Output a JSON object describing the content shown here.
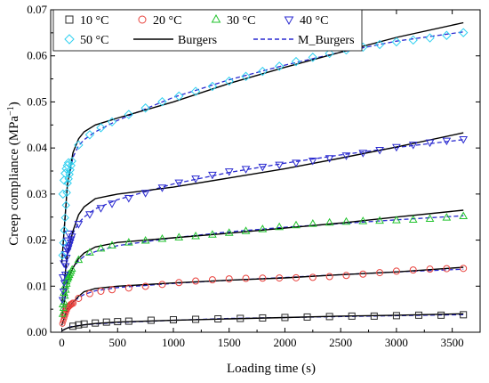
{
  "chart_data": {
    "type": "scatter",
    "xlabel": "Loading time (s)",
    "ylabel_main": "Creep compliance (MPa",
    "ylabel_sup": "−1",
    "ylabel_end": ")",
    "xlim": [
      -100,
      3750
    ],
    "ylim": [
      0,
      0.07
    ],
    "xticks": [
      0,
      500,
      1000,
      1500,
      2000,
      2500,
      3000,
      3500
    ],
    "yticks": [
      0.0,
      0.01,
      0.02,
      0.03,
      0.04,
      0.05,
      0.06,
      0.07
    ],
    "ytick_labels": [
      "0.00",
      "0.01",
      "0.02",
      "0.03",
      "0.04",
      "0.05",
      "0.06",
      "0.07"
    ],
    "legend_position": "top",
    "series": [
      {
        "name": "10 °C",
        "marker": "square",
        "color": "#2b2b2b",
        "max_time": 3600,
        "data": [
          [
            100,
            0.0013
          ],
          [
            150,
            0.0016
          ],
          [
            200,
            0.0018
          ],
          [
            300,
            0.002
          ],
          [
            400,
            0.0022
          ],
          [
            500,
            0.0023
          ],
          [
            600,
            0.0024
          ],
          [
            800,
            0.0026
          ],
          [
            1000,
            0.0027
          ],
          [
            1200,
            0.0028
          ],
          [
            1400,
            0.0029
          ],
          [
            1600,
            0.003
          ],
          [
            1800,
            0.0031
          ],
          [
            2000,
            0.0032
          ],
          [
            2200,
            0.0033
          ],
          [
            2400,
            0.0034
          ],
          [
            2600,
            0.0035
          ],
          [
            2800,
            0.0035
          ],
          [
            3000,
            0.0036
          ],
          [
            3200,
            0.0037
          ],
          [
            3400,
            0.0037
          ],
          [
            3600,
            0.0038
          ]
        ]
      },
      {
        "name": "20 °C",
        "marker": "circle",
        "color": "#e8413c",
        "max_time": 100,
        "data": [
          [
            20,
            0.004
          ],
          [
            40,
            0.005
          ],
          [
            60,
            0.0056
          ],
          [
            80,
            0.006
          ],
          [
            100,
            0.0063
          ]
        ]
      },
      {
        "name": "30 °C",
        "marker": "triangle-up",
        "color": "#22c32e",
        "max_time": 60,
        "data": [
          [
            10,
            0.006
          ],
          [
            20,
            0.0085
          ],
          [
            30,
            0.01
          ],
          [
            40,
            0.011
          ],
          [
            50,
            0.0118
          ],
          [
            60,
            0.0125
          ]
        ]
      },
      {
        "name": "40 °C",
        "marker": "triangle-down",
        "color": "#2a2ad0",
        "max_time": 60,
        "data": [
          [
            10,
            0.012
          ],
          [
            20,
            0.015
          ],
          [
            30,
            0.017
          ],
          [
            40,
            0.0185
          ],
          [
            50,
            0.02
          ],
          [
            60,
            0.0215
          ]
        ]
      },
      {
        "name": "50 °C",
        "marker": "diamond",
        "color": "#2fd0f0",
        "max_time": 60,
        "data": [
          [
            10,
            0.03
          ],
          [
            20,
            0.033
          ],
          [
            30,
            0.0345
          ],
          [
            40,
            0.0355
          ],
          [
            50,
            0.0362
          ],
          [
            60,
            0.0368
          ]
        ]
      }
    ],
    "fit_series": [
      {
        "name": "Burgers",
        "style": "solid",
        "color": "#000000"
      },
      {
        "name": "M_Burgers",
        "style": "dashed",
        "color": "#2a2ad0"
      }
    ],
    "curves": [
      {
        "color": "#2b2b2b",
        "burgers": [
          [
            0,
            0.0003
          ],
          [
            50,
            0.0009
          ],
          [
            100,
            0.0012
          ],
          [
            200,
            0.0016
          ],
          [
            300,
            0.0019
          ],
          [
            500,
            0.0022
          ],
          [
            1000,
            0.0026
          ],
          [
            1500,
            0.0029
          ],
          [
            2000,
            0.0032
          ],
          [
            2500,
            0.0035
          ],
          [
            3000,
            0.0037
          ],
          [
            3600,
            0.004
          ]
        ],
        "m_burgers": [
          [
            0,
            0.0003
          ],
          [
            50,
            0.001
          ],
          [
            100,
            0.0013
          ],
          [
            200,
            0.0016
          ],
          [
            300,
            0.0018
          ],
          [
            500,
            0.0021
          ],
          [
            1000,
            0.0026
          ],
          [
            1500,
            0.003
          ],
          [
            2000,
            0.0032
          ],
          [
            2500,
            0.0034
          ],
          [
            3000,
            0.0036
          ],
          [
            3600,
            0.0038
          ]
        ]
      },
      {
        "color": "#e8413c",
        "burgers": [
          [
            0,
            0.0015
          ],
          [
            50,
            0.005
          ],
          [
            100,
            0.0065
          ],
          [
            150,
            0.0078
          ],
          [
            200,
            0.0088
          ],
          [
            300,
            0.0095
          ],
          [
            500,
            0.01
          ],
          [
            1000,
            0.0107
          ],
          [
            1500,
            0.0113
          ],
          [
            2000,
            0.0118
          ],
          [
            2500,
            0.0125
          ],
          [
            3000,
            0.0131
          ],
          [
            3600,
            0.0141
          ]
        ],
        "m_burgers": [
          [
            0,
            0.0015
          ],
          [
            50,
            0.0052
          ],
          [
            100,
            0.0065
          ],
          [
            150,
            0.0075
          ],
          [
            200,
            0.0082
          ],
          [
            300,
            0.009
          ],
          [
            500,
            0.0097
          ],
          [
            1000,
            0.0106
          ],
          [
            1500,
            0.0113
          ],
          [
            2000,
            0.0119
          ],
          [
            2500,
            0.0125
          ],
          [
            3000,
            0.0131
          ],
          [
            3600,
            0.0137
          ]
        ]
      },
      {
        "color": "#22c32e",
        "burgers": [
          [
            0,
            0.003
          ],
          [
            50,
            0.011
          ],
          [
            100,
            0.014
          ],
          [
            150,
            0.016
          ],
          [
            200,
            0.0172
          ],
          [
            300,
            0.0185
          ],
          [
            500,
            0.0195
          ],
          [
            1000,
            0.0205
          ],
          [
            1500,
            0.0215
          ],
          [
            2000,
            0.0226
          ],
          [
            2500,
            0.0237
          ],
          [
            3000,
            0.025
          ],
          [
            3600,
            0.0265
          ]
        ],
        "m_burgers": [
          [
            0,
            0.003
          ],
          [
            50,
            0.0112
          ],
          [
            100,
            0.014
          ],
          [
            150,
            0.0155
          ],
          [
            200,
            0.0165
          ],
          [
            300,
            0.0175
          ],
          [
            500,
            0.0188
          ],
          [
            1000,
            0.0205
          ],
          [
            1500,
            0.0218
          ],
          [
            2000,
            0.0228
          ],
          [
            2500,
            0.0236
          ],
          [
            3000,
            0.0244
          ],
          [
            3600,
            0.0253
          ]
        ]
      },
      {
        "color": "#2a2ad0",
        "burgers": [
          [
            0,
            0.006
          ],
          [
            50,
            0.017
          ],
          [
            100,
            0.022
          ],
          [
            150,
            0.0255
          ],
          [
            200,
            0.0272
          ],
          [
            300,
            0.029
          ],
          [
            500,
            0.03
          ],
          [
            1000,
            0.0315
          ],
          [
            1500,
            0.0335
          ],
          [
            2000,
            0.0355
          ],
          [
            2500,
            0.0378
          ],
          [
            3000,
            0.0402
          ],
          [
            3600,
            0.0433
          ]
        ],
        "m_burgers": [
          [
            0,
            0.006
          ],
          [
            50,
            0.0175
          ],
          [
            100,
            0.0215
          ],
          [
            150,
            0.0237
          ],
          [
            200,
            0.025
          ],
          [
            300,
            0.0268
          ],
          [
            500,
            0.0288
          ],
          [
            1000,
            0.0322
          ],
          [
            1500,
            0.0347
          ],
          [
            2000,
            0.0367
          ],
          [
            2500,
            0.0385
          ],
          [
            3000,
            0.0401
          ],
          [
            3600,
            0.0418
          ]
        ]
      },
      {
        "color": "#2fd0f0",
        "burgers": [
          [
            0,
            0.015
          ],
          [
            50,
            0.032
          ],
          [
            100,
            0.039
          ],
          [
            150,
            0.042
          ],
          [
            200,
            0.0435
          ],
          [
            300,
            0.045
          ],
          [
            500,
            0.0465
          ],
          [
            1000,
            0.05
          ],
          [
            1500,
            0.054
          ],
          [
            2000,
            0.0575
          ],
          [
            2500,
            0.0608
          ],
          [
            3000,
            0.064
          ],
          [
            3600,
            0.0672
          ]
        ],
        "m_burgers": [
          [
            0,
            0.015
          ],
          [
            50,
            0.032
          ],
          [
            100,
            0.038
          ],
          [
            150,
            0.0405
          ],
          [
            200,
            0.0418
          ],
          [
            300,
            0.0435
          ],
          [
            500,
            0.046
          ],
          [
            1000,
            0.051
          ],
          [
            1500,
            0.0548
          ],
          [
            2000,
            0.058
          ],
          [
            2500,
            0.0608
          ],
          [
            3000,
            0.0632
          ],
          [
            3600,
            0.0652
          ]
        ]
      }
    ]
  }
}
